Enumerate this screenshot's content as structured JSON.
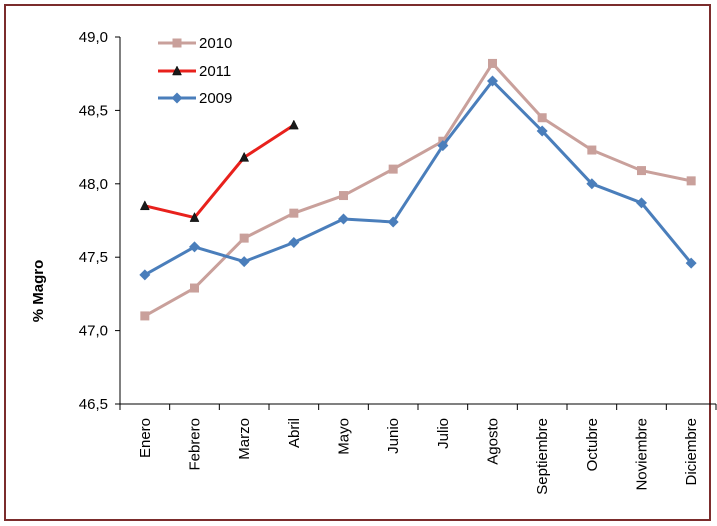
{
  "chart_data": {
    "type": "line",
    "categories": [
      "Enero",
      "Febrero",
      "Marzo",
      "Abril",
      "Mayo",
      "Junio",
      "Julio",
      "Agosto",
      "Septiembre",
      "Octubre",
      "Noviembre",
      "Diciembre"
    ],
    "ylabel": "% Magro",
    "xlabel": "",
    "title": "",
    "ylim": [
      46.5,
      49.0
    ],
    "y_ticks": [
      "46,5",
      "47,0",
      "47,5",
      "48,0",
      "48,5",
      "49,0"
    ],
    "y_tick_values": [
      46.5,
      47.0,
      47.5,
      48.0,
      48.5,
      49.0
    ],
    "grid": false,
    "legend_position": "top-left",
    "series": [
      {
        "name": "2010",
        "color": "#c9a09b",
        "marker": "square",
        "values": [
          47.1,
          47.29,
          47.63,
          47.8,
          47.92,
          48.1,
          48.29,
          48.82,
          48.45,
          48.23,
          48.09,
          48.02
        ]
      },
      {
        "name": "2011",
        "color": "#e8211c",
        "marker": "triangle",
        "values": [
          47.85,
          47.77,
          48.18,
          48.4,
          null,
          null,
          null,
          null,
          null,
          null,
          null,
          null
        ]
      },
      {
        "name": "2009",
        "color": "#4a7ebb",
        "marker": "diamond",
        "values": [
          47.38,
          47.57,
          47.47,
          47.6,
          47.76,
          47.74,
          48.26,
          48.7,
          48.36,
          48.0,
          47.87,
          47.46
        ]
      }
    ]
  }
}
